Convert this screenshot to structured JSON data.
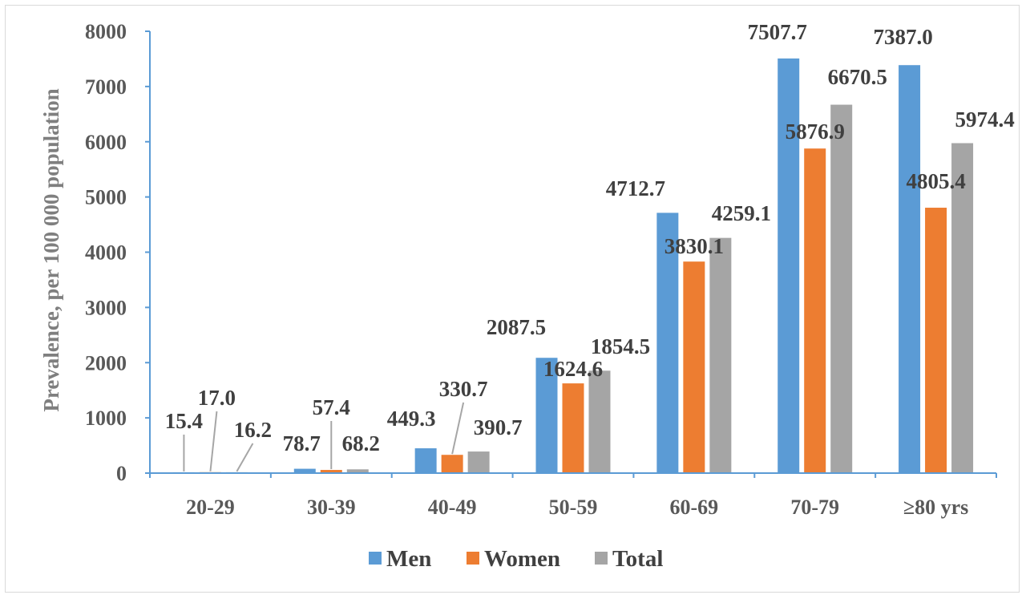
{
  "chart_data": {
    "type": "bar",
    "ylabel": "Prevalence, per 100 000 population",
    "xlabel": "",
    "ylim": [
      0,
      8000
    ],
    "yticks": [
      0,
      1000,
      2000,
      3000,
      4000,
      5000,
      6000,
      7000,
      8000
    ],
    "grid": false,
    "legend_position": "bottom",
    "categories": [
      "20-29",
      "30-39",
      "40-49",
      "50-59",
      "60-69",
      "70-79",
      "≥80 yrs"
    ],
    "series": [
      {
        "name": "Men",
        "color": "#5b9bd5",
        "values": [
          15.4,
          78.7,
          449.3,
          2087.5,
          4712.7,
          7507.7,
          7387.0
        ],
        "labels": [
          "15.4",
          "78.7",
          "449.3",
          "2087.5",
          "4712.7",
          "7507.7",
          "7387.0"
        ]
      },
      {
        "name": "Women",
        "color": "#ed7d31",
        "values": [
          17.0,
          57.4,
          330.7,
          1624.6,
          3830.1,
          5876.9,
          4805.4
        ],
        "labels": [
          "17.0",
          "57.4",
          "330.7",
          "1624.6",
          "3830.1",
          "5876.9",
          "4805.4"
        ]
      },
      {
        "name": "Total",
        "color": "#a5a5a5",
        "values": [
          16.2,
          68.2,
          390.7,
          1854.5,
          4259.1,
          6670.5,
          5974.4
        ],
        "labels": [
          "16.2",
          "68.2",
          "390.7",
          "1854.5",
          "4259.1",
          "6670.5",
          "5974.4"
        ]
      }
    ],
    "axis_color": "#5b9bd5",
    "leader_line_color": "#a6a6a6"
  }
}
